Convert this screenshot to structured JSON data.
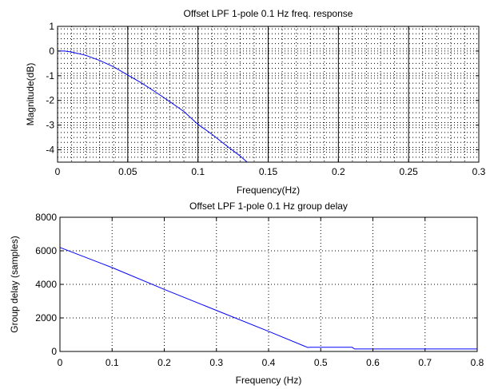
{
  "chart_data": [
    {
      "type": "line",
      "title": "Offset LPF 1-pole 0.1 Hz freq. response",
      "xlabel": "Frequency(Hz)",
      "ylabel": "Magnitude(dB)",
      "xlim": [
        0,
        0.3
      ],
      "ylim": [
        -4.5,
        1
      ],
      "xticks": [
        0,
        0.05,
        0.1,
        0.15,
        0.2,
        0.25,
        0.3
      ],
      "xtick_labels": [
        "0",
        "0.05",
        "0.1",
        "0.15",
        "0.2",
        "0.25",
        "0.3"
      ],
      "yticks": [
        1,
        0,
        -1,
        -2,
        -3,
        -4
      ],
      "ytick_labels": [
        "1",
        "0",
        "-1",
        "-2",
        "-3",
        "-4"
      ],
      "grid": true,
      "minor_grid": true,
      "series": [
        {
          "color": "#0000ff",
          "x": [
            0,
            0.005,
            0.01,
            0.02,
            0.03,
            0.04,
            0.05,
            0.06,
            0.07,
            0.08,
            0.09,
            0.1,
            0.11,
            0.12,
            0.13,
            0.135
          ],
          "y": [
            0,
            0,
            -0.04,
            -0.17,
            -0.38,
            -0.64,
            -0.97,
            -1.3,
            -1.67,
            -2.05,
            -2.45,
            -2.97,
            -3.37,
            -3.82,
            -4.25,
            -4.5
          ]
        }
      ]
    },
    {
      "type": "line",
      "title": "Offset LPF 1-pole 0.1 Hz group delay",
      "xlabel": "Frequency (Hz)",
      "ylabel": "Group delay (samples)",
      "xlim": [
        0,
        0.8
      ],
      "ylim": [
        0,
        8000
      ],
      "xticks": [
        0,
        0.1,
        0.2,
        0.3,
        0.4,
        0.5,
        0.6,
        0.7,
        0.8
      ],
      "xtick_labels": [
        "0",
        "0.1",
        "0.2",
        "0.3",
        "0.4",
        "0.5",
        "0.6",
        "0.7",
        "0.8"
      ],
      "yticks": [
        0,
        2000,
        4000,
        6000,
        8000
      ],
      "ytick_labels": [
        "0",
        "2000",
        "4000",
        "6000",
        "8000"
      ],
      "grid": true,
      "minor_grid": false,
      "series": [
        {
          "color": "#0000ff",
          "x": [
            0,
            0.1,
            0.2,
            0.3,
            0.4,
            0.475,
            0.48,
            0.56,
            0.565,
            0.8
          ],
          "y": [
            6200,
            5000,
            3700,
            2450,
            1200,
            240,
            250,
            250,
            150,
            150
          ]
        }
      ]
    }
  ]
}
